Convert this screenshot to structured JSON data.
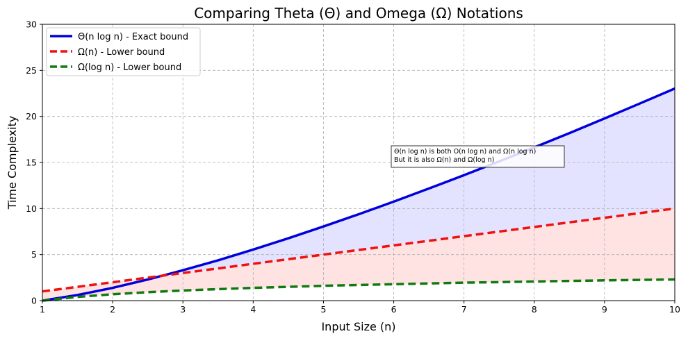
{
  "chart_data": {
    "type": "line",
    "title": "Comparing Theta (Θ) and Omega (Ω) Notations",
    "xlabel": "Input Size (n)",
    "ylabel": "Time Complexity",
    "xlim": [
      1,
      10
    ],
    "ylim": [
      0,
      30
    ],
    "xticks": [
      "1",
      "2",
      "3",
      "4",
      "5",
      "6",
      "7",
      "8",
      "9",
      "10"
    ],
    "yticks": [
      "0",
      "5",
      "10",
      "15",
      "20",
      "25",
      "30"
    ],
    "grid": true,
    "legend_position": "top-left",
    "x": [
      1,
      1.5,
      2,
      2.5,
      3,
      3.5,
      4,
      4.5,
      5,
      5.5,
      6,
      6.5,
      7,
      7.5,
      8,
      8.5,
      9,
      9.5,
      10
    ],
    "series": [
      {
        "name": "Θ(n log n) - Exact bound",
        "color": "#0000dd",
        "style": "solid",
        "values": [
          0,
          0.61,
          1.39,
          2.29,
          3.3,
          4.38,
          5.55,
          6.77,
          8.05,
          9.38,
          10.75,
          12.17,
          13.62,
          15.11,
          16.64,
          18.19,
          19.78,
          21.39,
          23.03
        ]
      },
      {
        "name": "Ω(n) - Lower bound",
        "color": "#ee1111",
        "style": "dashed",
        "values": [
          1,
          1.5,
          2,
          2.5,
          3,
          3.5,
          4,
          4.5,
          5,
          5.5,
          6,
          6.5,
          7,
          7.5,
          8,
          8.5,
          9,
          9.5,
          10
        ]
      },
      {
        "name": "Ω(log n) - Lower bound",
        "color": "#107a10",
        "style": "dashed",
        "values": [
          0,
          0.41,
          0.69,
          0.92,
          1.1,
          1.25,
          1.39,
          1.5,
          1.61,
          1.7,
          1.79,
          1.87,
          1.95,
          2.01,
          2.08,
          2.14,
          2.2,
          2.25,
          2.3
        ]
      }
    ],
    "fills": [
      {
        "between": [
          "Θ(n log n) - Exact bound",
          "Ω(n) - Lower bound"
        ],
        "color": "#e3e3ff"
      },
      {
        "between": [
          "Ω(n) - Lower bound",
          "Ω(log n) - Lower bound"
        ],
        "color": "#ffe3e3"
      }
    ],
    "annotation": {
      "x": 6,
      "y": 15,
      "lines": [
        "Θ(n log n) is both O(n log n) and Ω(n log n)",
        "But it is also Ω(n) and Ω(log n)"
      ]
    }
  }
}
